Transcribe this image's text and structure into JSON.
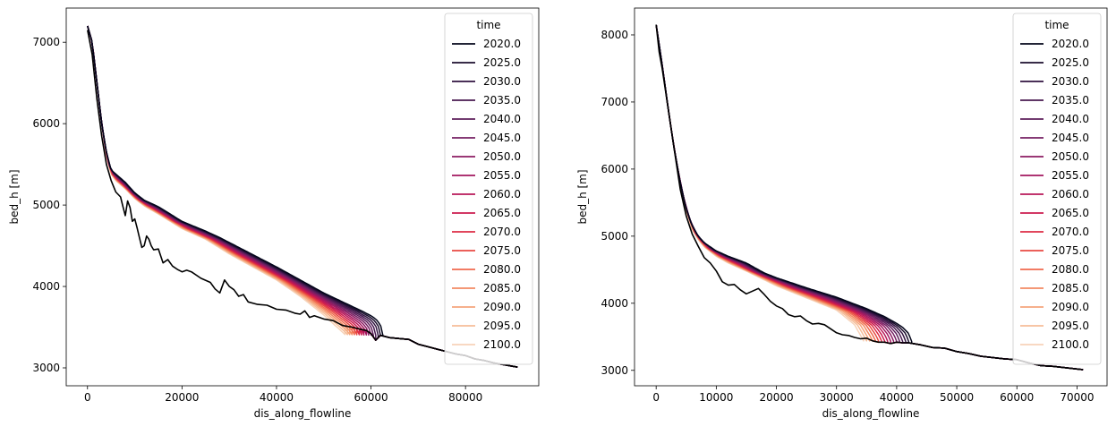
{
  "chart_data": [
    {
      "type": "line",
      "xlabel": "dis_along_flowline",
      "ylabel": "bed_h [m]",
      "xlim": [
        -4500,
        95500
      ],
      "ylim": [
        2780,
        7420
      ],
      "xticks": [
        0,
        20000,
        40000,
        60000,
        80000
      ],
      "yticks": [
        3000,
        4000,
        5000,
        6000,
        7000
      ],
      "grid": false,
      "legend_placement": "top-right",
      "legend_title": "time",
      "bed": {
        "name": "",
        "color": "#000000",
        "x": [
          0,
          1000,
          2000,
          3000,
          4000,
          5000,
          6000,
          7000,
          7500,
          8000,
          8500,
          9000,
          9500,
          10000,
          10500,
          11000,
          11500,
          12000,
          12500,
          13000,
          13500,
          14000,
          15000,
          16000,
          17000,
          18000,
          19000,
          20000,
          21000,
          22000,
          24000,
          26000,
          27000,
          28000,
          29000,
          30000,
          31000,
          32000,
          33000,
          34000,
          36000,
          38000,
          40000,
          42000,
          44000,
          45000,
          46000,
          47000,
          48000,
          50000,
          52000,
          54000,
          56000,
          58000,
          59000,
          60000,
          61000,
          62000,
          64000,
          66000,
          68000,
          70000,
          72000,
          74000,
          76000,
          78000,
          80000,
          82000,
          84000,
          86000,
          88000,
          90000,
          91000
        ],
        "y": [
          7150,
          6850,
          6300,
          5850,
          5500,
          5300,
          5160,
          5100,
          4980,
          4870,
          5050,
          4970,
          4800,
          4830,
          4720,
          4600,
          4480,
          4500,
          4620,
          4580,
          4500,
          4450,
          4460,
          4290,
          4330,
          4250,
          4210,
          4180,
          4200,
          4180,
          4100,
          4050,
          3970,
          3920,
          4080,
          4000,
          3960,
          3880,
          3900,
          3810,
          3780,
          3770,
          3720,
          3710,
          3670,
          3660,
          3700,
          3620,
          3640,
          3600,
          3580,
          3520,
          3500,
          3470,
          3460,
          3420,
          3340,
          3400,
          3370,
          3360,
          3350,
          3290,
          3260,
          3230,
          3200,
          3170,
          3150,
          3110,
          3090,
          3060,
          3040,
          3020,
          3010
        ]
      },
      "glacier": {
        "terminus_x": [
          62500,
          62000,
          61500,
          61000,
          60500,
          60000,
          59500,
          59000,
          58500,
          58000,
          57500,
          57000,
          56500,
          56000,
          55500,
          55000,
          54500
        ],
        "surface_2020": {
          "x": [
            0,
            1000,
            2000,
            3000,
            4000,
            5000,
            6000,
            8000,
            10000,
            12000,
            15000,
            20000,
            25000,
            28000,
            30000,
            40000,
            50000,
            58000,
            60000,
            61000,
            62000,
            62500
          ],
          "y": [
            7200,
            7000,
            6500,
            6000,
            5650,
            5430,
            5380,
            5280,
            5150,
            5060,
            4980,
            4800,
            4680,
            4600,
            4540,
            4240,
            3920,
            3700,
            3640,
            3600,
            3530,
            3400
          ]
        },
        "surface_2100": {
          "x": [
            0,
            1000,
            2000,
            3000,
            4000,
            5000,
            6000,
            8000,
            10000,
            12000,
            15000,
            20000,
            25000,
            30000,
            35000,
            40000,
            45000,
            50000,
            54500
          ],
          "y": [
            7200,
            7000,
            6500,
            6000,
            5600,
            5380,
            5300,
            5200,
            5080,
            4990,
            4890,
            4710,
            4580,
            4400,
            4240,
            4080,
            3880,
            3650,
            3410
          ]
        }
      },
      "series": [
        {
          "name": "2020.0",
          "color": "#03051a"
        },
        {
          "name": "2025.0",
          "color": "#1b0e2e"
        },
        {
          "name": "2030.0",
          "color": "#311340"
        },
        {
          "name": "2035.0",
          "color": "#481a51"
        },
        {
          "name": "2040.0",
          "color": "#5e1f5c"
        },
        {
          "name": "2045.0",
          "color": "#741f62"
        },
        {
          "name": "2050.0",
          "color": "#8c1b63"
        },
        {
          "name": "2055.0",
          "color": "#a2175f"
        },
        {
          "name": "2060.0",
          "color": "#b81859"
        },
        {
          "name": "2065.0",
          "color": "#cb1b4f"
        },
        {
          "name": "2070.0",
          "color": "#dd2c45"
        },
        {
          "name": "2075.0",
          "color": "#e84a42"
        },
        {
          "name": "2080.0",
          "color": "#f06a4e"
        },
        {
          "name": "2085.0",
          "color": "#f38a62"
        },
        {
          "name": "2090.0",
          "color": "#f5a57b"
        },
        {
          "name": "2095.0",
          "color": "#f6bd98"
        },
        {
          "name": "2100.0",
          "color": "#f7d3b9"
        }
      ]
    },
    {
      "type": "line",
      "xlabel": "dis_along_flowline",
      "ylabel": "bed_h [m]",
      "xlim": [
        -3600,
        75000
      ],
      "ylim": [
        2770,
        8400
      ],
      "xticks": [
        0,
        10000,
        20000,
        30000,
        40000,
        50000,
        60000,
        70000
      ],
      "yticks": [
        3000,
        4000,
        5000,
        6000,
        7000,
        8000
      ],
      "grid": false,
      "legend_placement": "top-right",
      "legend_title": "time",
      "bed": {
        "name": "",
        "color": "#000000",
        "x": [
          0,
          500,
          1000,
          2000,
          3000,
          4000,
          5000,
          6000,
          7000,
          8000,
          9000,
          10000,
          11000,
          12000,
          13000,
          14000,
          15000,
          16000,
          17000,
          18000,
          19000,
          20000,
          21000,
          22000,
          23000,
          24000,
          25000,
          26000,
          27000,
          28000,
          29000,
          30000,
          31000,
          32000,
          33000,
          34000,
          35000,
          36000,
          37000,
          38000,
          39000,
          40000,
          41000,
          42000,
          44000,
          46000,
          48000,
          50000,
          52000,
          54000,
          56000,
          58000,
          60000,
          62000,
          64000,
          66000,
          68000,
          70000,
          71000
        ],
        "y": [
          8150,
          7750,
          7500,
          6900,
          6300,
          5700,
          5300,
          5030,
          4850,
          4680,
          4600,
          4480,
          4320,
          4270,
          4280,
          4200,
          4140,
          4180,
          4220,
          4130,
          4030,
          3960,
          3920,
          3830,
          3800,
          3810,
          3740,
          3690,
          3700,
          3680,
          3620,
          3560,
          3530,
          3520,
          3490,
          3470,
          3480,
          3440,
          3420,
          3420,
          3400,
          3420,
          3410,
          3410,
          3380,
          3340,
          3330,
          3280,
          3250,
          3210,
          3190,
          3170,
          3160,
          3110,
          3070,
          3060,
          3040,
          3020,
          3010
        ]
      },
      "glacier": {
        "terminus_x": [
          42500,
          42000,
          41500,
          41000,
          40500,
          40000,
          39500,
          39000,
          38500,
          38000,
          37500,
          37000,
          36500,
          36000,
          35500,
          35000,
          34500
        ],
        "surface_2020": {
          "x": [
            0,
            1000,
            2000,
            3000,
            4000,
            5000,
            6000,
            7000,
            8000,
            10000,
            12000,
            15000,
            18000,
            20000,
            25000,
            30000,
            35000,
            38000,
            40000,
            41000,
            42000,
            42500
          ],
          "y": [
            8150,
            7550,
            6900,
            6300,
            5800,
            5400,
            5150,
            5000,
            4900,
            4780,
            4700,
            4600,
            4450,
            4380,
            4230,
            4090,
            3920,
            3800,
            3700,
            3640,
            3550,
            3430
          ]
        },
        "surface_2100": {
          "x": [
            0,
            1000,
            2000,
            3000,
            4000,
            5000,
            6000,
            7000,
            8000,
            10000,
            12000,
            15000,
            20000,
            25000,
            30000,
            33000,
            34500
          ],
          "y": [
            8150,
            7550,
            6900,
            6300,
            5800,
            5380,
            5100,
            4950,
            4840,
            4700,
            4600,
            4480,
            4260,
            4080,
            3900,
            3680,
            3440
          ]
        }
      },
      "series": [
        {
          "name": "2020.0",
          "color": "#03051a"
        },
        {
          "name": "2025.0",
          "color": "#1b0e2e"
        },
        {
          "name": "2030.0",
          "color": "#311340"
        },
        {
          "name": "2035.0",
          "color": "#481a51"
        },
        {
          "name": "2040.0",
          "color": "#5e1f5c"
        },
        {
          "name": "2045.0",
          "color": "#741f62"
        },
        {
          "name": "2050.0",
          "color": "#8c1b63"
        },
        {
          "name": "2055.0",
          "color": "#a2175f"
        },
        {
          "name": "2060.0",
          "color": "#b81859"
        },
        {
          "name": "2065.0",
          "color": "#cb1b4f"
        },
        {
          "name": "2070.0",
          "color": "#dd2c45"
        },
        {
          "name": "2075.0",
          "color": "#e84a42"
        },
        {
          "name": "2080.0",
          "color": "#f06a4e"
        },
        {
          "name": "2085.0",
          "color": "#f38a62"
        },
        {
          "name": "2090.0",
          "color": "#f5a57b"
        },
        {
          "name": "2095.0",
          "color": "#f6bd98"
        },
        {
          "name": "2100.0",
          "color": "#f7d3b9"
        }
      ]
    }
  ]
}
